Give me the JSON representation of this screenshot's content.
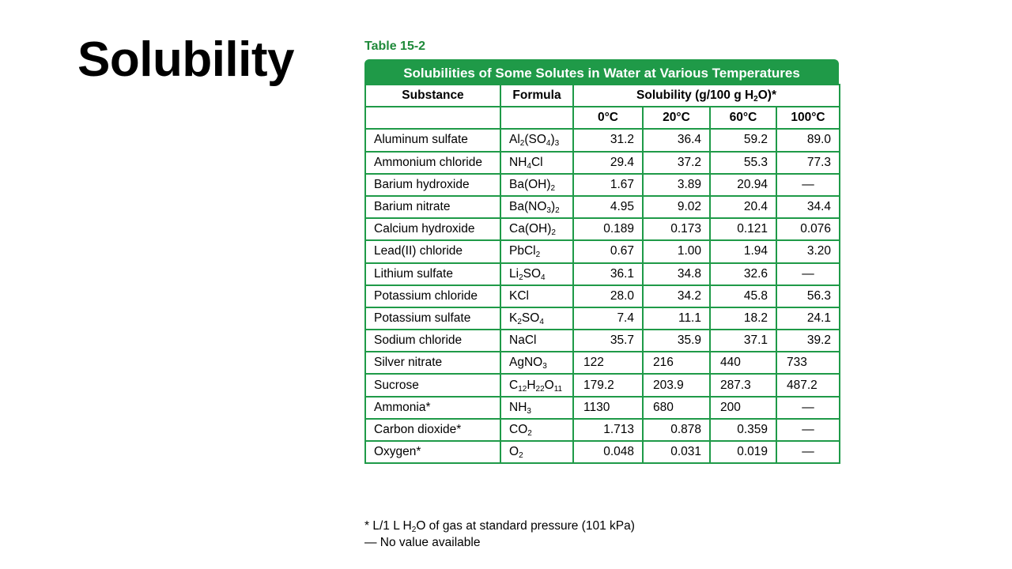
{
  "slide": {
    "title": "Solubility"
  },
  "table": {
    "label": "Table 15-2",
    "caption": "Solubilities of Some Solutes in Water at Various Temperatures",
    "headers": {
      "substance": "Substance",
      "formula": "Formula",
      "solubility_pre": "Solubility (g/100 g H",
      "solubility_sub": "2",
      "solubility_post": "O)*"
    },
    "temps": [
      "0°C",
      "20°C",
      "60°C",
      "100°C"
    ],
    "rows": [
      {
        "substance": "Aluminum sulfate",
        "formula": [
          [
            "Al",
            ""
          ],
          [
            "2",
            "s"
          ],
          [
            "(SO",
            ""
          ],
          [
            "4",
            "s"
          ],
          [
            ")",
            ""
          ],
          [
            "3",
            "s"
          ]
        ],
        "values": [
          "31.2",
          "36.4",
          "59.2",
          "89.0"
        ]
      },
      {
        "substance": "Ammonium chloride",
        "formula": [
          [
            "NH",
            ""
          ],
          [
            "4",
            "s"
          ],
          [
            "Cl",
            ""
          ]
        ],
        "values": [
          "29.4",
          "37.2",
          "55.3",
          "77.3"
        ]
      },
      {
        "substance": "Barium hydroxide",
        "formula": [
          [
            "Ba(OH)",
            ""
          ],
          [
            "2",
            "s"
          ]
        ],
        "values": [
          "1.67",
          "3.89",
          "20.94",
          "—"
        ]
      },
      {
        "substance": "Barium nitrate",
        "formula": [
          [
            "Ba(NO",
            ""
          ],
          [
            "3",
            "s"
          ],
          [
            ")",
            ""
          ],
          [
            "2",
            "s"
          ]
        ],
        "values": [
          "4.95",
          "9.02",
          "20.4",
          "34.4"
        ]
      },
      {
        "substance": "Calcium hydroxide",
        "formula": [
          [
            "Ca(OH)",
            ""
          ],
          [
            "2",
            "s"
          ]
        ],
        "values": [
          "0.189",
          "0.173",
          "0.121",
          "0.076"
        ]
      },
      {
        "substance": "Lead(II) chloride",
        "formula": [
          [
            "PbCl",
            ""
          ],
          [
            "2",
            "s"
          ]
        ],
        "values": [
          "0.67",
          "1.00",
          "1.94",
          "3.20"
        ]
      },
      {
        "substance": "Lithium sulfate",
        "formula": [
          [
            "Li",
            ""
          ],
          [
            "2",
            "s"
          ],
          [
            "SO",
            ""
          ],
          [
            "4",
            "s"
          ]
        ],
        "values": [
          "36.1",
          "34.8",
          "32.6",
          "—"
        ]
      },
      {
        "substance": "Potassium chloride",
        "formula": [
          [
            "KCl",
            ""
          ]
        ],
        "values": [
          "28.0",
          "34.2",
          "45.8",
          "56.3"
        ]
      },
      {
        "substance": "Potassium sulfate",
        "formula": [
          [
            "K",
            ""
          ],
          [
            "2",
            "s"
          ],
          [
            "SO",
            ""
          ],
          [
            "4",
            "s"
          ]
        ],
        "values": [
          "7.4",
          "11.1",
          "18.2",
          "24.1"
        ]
      },
      {
        "substance": "Sodium chloride",
        "formula": [
          [
            "NaCl",
            ""
          ]
        ],
        "values": [
          "35.7",
          "35.9",
          "37.1",
          "39.2"
        ]
      },
      {
        "substance": "Silver nitrate",
        "formula": [
          [
            "AgNO",
            ""
          ],
          [
            "3",
            "s"
          ]
        ],
        "values": [
          "122",
          "216",
          "440",
          "733"
        ]
      },
      {
        "substance": "Sucrose",
        "formula": [
          [
            "C",
            ""
          ],
          [
            "12",
            "s"
          ],
          [
            "H",
            ""
          ],
          [
            "22",
            "s"
          ],
          [
            "O",
            ""
          ],
          [
            "11",
            "s"
          ]
        ],
        "values": [
          "179.2",
          "203.9",
          "287.3",
          "487.2"
        ]
      },
      {
        "substance": "Ammonia*",
        "formula": [
          [
            "NH",
            ""
          ],
          [
            "3",
            "s"
          ]
        ],
        "values": [
          "1130",
          "680",
          "200",
          "—"
        ]
      },
      {
        "substance": "Carbon dioxide*",
        "formula": [
          [
            "CO",
            ""
          ],
          [
            "2",
            "s"
          ]
        ],
        "values": [
          "1.713",
          "0.878",
          "0.359",
          "—"
        ]
      },
      {
        "substance": "Oxygen*",
        "formula": [
          [
            "O",
            ""
          ],
          [
            "2",
            "s"
          ]
        ],
        "values": [
          "0.048",
          "0.031",
          "0.019",
          "—"
        ]
      }
    ]
  },
  "footnotes": {
    "gas_pre": "* L/1 L H",
    "gas_sub": "2",
    "gas_post": "O of gas at standard pressure (101 kPa)",
    "no_value": "— No value available"
  }
}
